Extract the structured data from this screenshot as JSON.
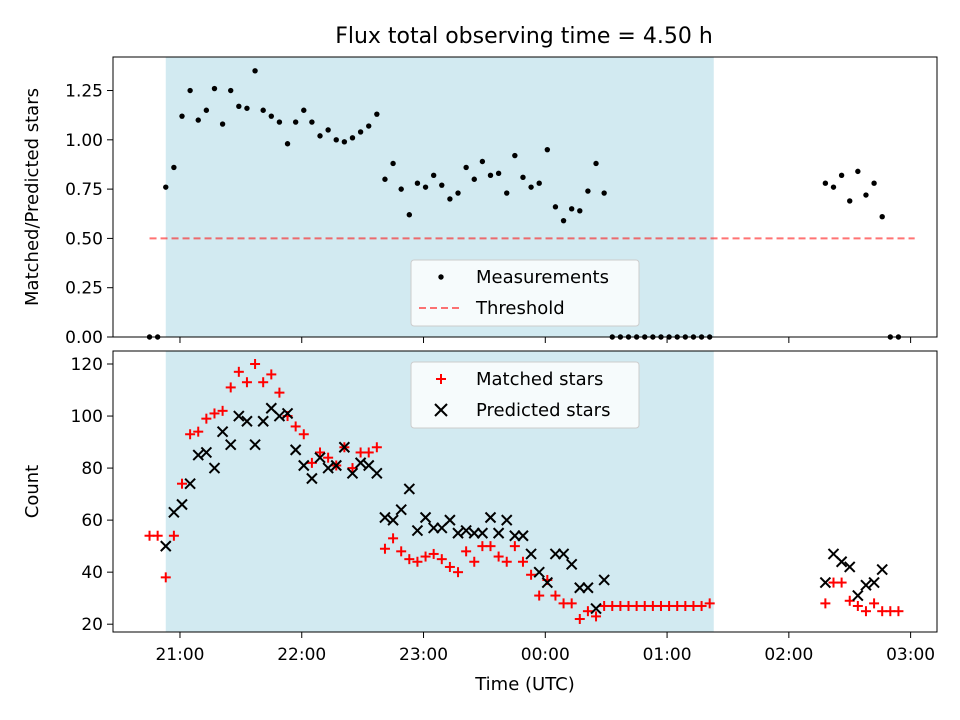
{
  "title": "Flux total observing time = 4.50 h",
  "colors": {
    "shade": "#add8e6",
    "measurement": "#000000",
    "threshold": "#ff0000",
    "matched": "#ff0000",
    "predicted": "#000000"
  },
  "chart_data": [
    {
      "type": "scatter",
      "ylabel": "Matched/Predicted stars",
      "ylim": [
        0,
        1.42
      ],
      "yticks": [
        "0.00",
        "0.25",
        "0.50",
        "0.75",
        "1.00",
        "1.25"
      ],
      "ytick_values": [
        0,
        0.25,
        0.5,
        0.75,
        1.0,
        1.25
      ],
      "xlim": [
        "20:27",
        "03:13"
      ],
      "x_tick_values": [
        "21:00",
        "22:00",
        "23:00",
        "00:00",
        "01:00",
        "02:00",
        "03:00"
      ],
      "shaded_span": [
        "20:53",
        "01:23"
      ],
      "legend": {
        "placement": "lower center",
        "entries": [
          "Measurements",
          "Threshold"
        ]
      },
      "threshold": {
        "name": "Threshold",
        "value": 0.5,
        "x_range": [
          "20:45",
          "03:02"
        ],
        "style": "dashed"
      },
      "series": [
        {
          "name": "Measurements",
          "marker": "dot",
          "points": [
            [
              "20:45",
              0
            ],
            [
              "20:49",
              0
            ],
            [
              "20:53",
              0.76
            ],
            [
              "20:57",
              0.86
            ],
            [
              "21:01",
              1.12
            ],
            [
              "21:05",
              1.25
            ],
            [
              "21:09",
              1.1
            ],
            [
              "21:13",
              1.15
            ],
            [
              "21:17",
              1.26
            ],
            [
              "21:21",
              1.08
            ],
            [
              "21:25",
              1.25
            ],
            [
              "21:29",
              1.17
            ],
            [
              "21:33",
              1.16
            ],
            [
              "21:37",
              1.35
            ],
            [
              "21:41",
              1.15
            ],
            [
              "21:45",
              1.12
            ],
            [
              "21:49",
              1.09
            ],
            [
              "21:53",
              0.98
            ],
            [
              "21:57",
              1.09
            ],
            [
              "22:01",
              1.15
            ],
            [
              "22:05",
              1.09
            ],
            [
              "22:09",
              1.02
            ],
            [
              "22:13",
              1.05
            ],
            [
              "22:17",
              1.0
            ],
            [
              "22:21",
              0.99
            ],
            [
              "22:25",
              1.01
            ],
            [
              "22:29",
              1.04
            ],
            [
              "22:33",
              1.07
            ],
            [
              "22:37",
              1.13
            ],
            [
              "22:41",
              0.8
            ],
            [
              "22:45",
              0.88
            ],
            [
              "22:49",
              0.75
            ],
            [
              "22:53",
              0.62
            ],
            [
              "22:57",
              0.78
            ],
            [
              "23:01",
              0.76
            ],
            [
              "23:05",
              0.82
            ],
            [
              "23:09",
              0.77
            ],
            [
              "23:13",
              0.7
            ],
            [
              "23:17",
              0.73
            ],
            [
              "23:21",
              0.86
            ],
            [
              "23:25",
              0.8
            ],
            [
              "23:29",
              0.89
            ],
            [
              "23:33",
              0.82
            ],
            [
              "23:37",
              0.83
            ],
            [
              "23:41",
              0.73
            ],
            [
              "23:45",
              0.92
            ],
            [
              "23:49",
              0.81
            ],
            [
              "23:53",
              0.76
            ],
            [
              "23:57",
              0.78
            ],
            [
              "00:01",
              0.95
            ],
            [
              "00:05",
              0.66
            ],
            [
              "00:09",
              0.59
            ],
            [
              "00:13",
              0.65
            ],
            [
              "00:17",
              0.64
            ],
            [
              "00:21",
              0.74
            ],
            [
              "00:25",
              0.88
            ],
            [
              "00:29",
              0.73
            ],
            [
              "00:33",
              0
            ],
            [
              "00:37",
              0
            ],
            [
              "00:41",
              0
            ],
            [
              "00:45",
              0
            ],
            [
              "00:49",
              0
            ],
            [
              "00:53",
              0
            ],
            [
              "00:57",
              0
            ],
            [
              "01:01",
              0
            ],
            [
              "01:05",
              0
            ],
            [
              "01:09",
              0
            ],
            [
              "01:13",
              0
            ],
            [
              "01:17",
              0
            ],
            [
              "01:21",
              0
            ],
            [
              "02:18",
              0.78
            ],
            [
              "02:22",
              0.76
            ],
            [
              "02:26",
              0.82
            ],
            [
              "02:30",
              0.69
            ],
            [
              "02:34",
              0.84
            ],
            [
              "02:38",
              0.72
            ],
            [
              "02:42",
              0.78
            ],
            [
              "02:46",
              0.61
            ],
            [
              "02:50",
              0
            ],
            [
              "02:54",
              0
            ]
          ]
        }
      ]
    },
    {
      "type": "scatter",
      "xlabel": "Time (UTC)",
      "ylabel": "Count",
      "ylim": [
        17,
        125
      ],
      "yticks": [
        "20",
        "40",
        "60",
        "80",
        "100",
        "120"
      ],
      "ytick_values": [
        20,
        40,
        60,
        80,
        100,
        120
      ],
      "xlim": [
        "20:27",
        "03:13"
      ],
      "xticks": [
        "21:00",
        "22:00",
        "23:00",
        "00:00",
        "01:00",
        "02:00",
        "03:00"
      ],
      "shaded_span": [
        "20:53",
        "01:23"
      ],
      "legend": {
        "placement": "upper center",
        "entries": [
          "Matched stars",
          "Predicted stars"
        ]
      },
      "series": [
        {
          "name": "Matched stars",
          "marker": "plus",
          "points": [
            [
              "20:45",
              54
            ],
            [
              "20:49",
              54
            ],
            [
              "20:53",
              38
            ],
            [
              "20:57",
              54
            ],
            [
              "21:01",
              74
            ],
            [
              "21:05",
              93
            ],
            [
              "21:09",
              94
            ],
            [
              "21:13",
              99
            ],
            [
              "21:17",
              101
            ],
            [
              "21:21",
              102
            ],
            [
              "21:25",
              111
            ],
            [
              "21:29",
              117
            ],
            [
              "21:33",
              113
            ],
            [
              "21:37",
              120
            ],
            [
              "21:41",
              113
            ],
            [
              "21:45",
              116
            ],
            [
              "21:49",
              109
            ],
            [
              "21:53",
              100
            ],
            [
              "21:57",
              96
            ],
            [
              "22:01",
              93
            ],
            [
              "22:05",
              82
            ],
            [
              "22:09",
              86
            ],
            [
              "22:13",
              84
            ],
            [
              "22:17",
              81
            ],
            [
              "22:21",
              88
            ],
            [
              "22:25",
              80
            ],
            [
              "22:29",
              86
            ],
            [
              "22:33",
              86
            ],
            [
              "22:37",
              88
            ],
            [
              "22:41",
              49
            ],
            [
              "22:45",
              53
            ],
            [
              "22:49",
              48
            ],
            [
              "22:53",
              45
            ],
            [
              "22:57",
              44
            ],
            [
              "23:01",
              46
            ],
            [
              "23:05",
              47
            ],
            [
              "23:09",
              45
            ],
            [
              "23:13",
              42
            ],
            [
              "23:17",
              40
            ],
            [
              "23:21",
              48
            ],
            [
              "23:25",
              44
            ],
            [
              "23:29",
              50
            ],
            [
              "23:33",
              50
            ],
            [
              "23:37",
              46
            ],
            [
              "23:41",
              44
            ],
            [
              "23:45",
              50
            ],
            [
              "23:49",
              44
            ],
            [
              "23:53",
              39
            ],
            [
              "23:57",
              31
            ],
            [
              "00:01",
              37
            ],
            [
              "00:05",
              31
            ],
            [
              "00:09",
              28
            ],
            [
              "00:13",
              28
            ],
            [
              "00:17",
              22
            ],
            [
              "00:21",
              25
            ],
            [
              "00:25",
              23
            ],
            [
              "00:29",
              27
            ],
            [
              "00:33",
              27
            ],
            [
              "00:37",
              27
            ],
            [
              "00:41",
              27
            ],
            [
              "00:45",
              27
            ],
            [
              "00:49",
              27
            ],
            [
              "00:53",
              27
            ],
            [
              "00:57",
              27
            ],
            [
              "01:01",
              27
            ],
            [
              "01:05",
              27
            ],
            [
              "01:09",
              27
            ],
            [
              "01:13",
              27
            ],
            [
              "01:17",
              27
            ],
            [
              "01:21",
              28
            ],
            [
              "02:18",
              28
            ],
            [
              "02:22",
              36
            ],
            [
              "02:26",
              36
            ],
            [
              "02:30",
              29
            ],
            [
              "02:34",
              27
            ],
            [
              "02:38",
              25
            ],
            [
              "02:42",
              28
            ],
            [
              "02:46",
              25
            ],
            [
              "02:50",
              25
            ],
            [
              "02:54",
              25
            ]
          ]
        },
        {
          "name": "Predicted stars",
          "marker": "x",
          "points": [
            [
              "20:53",
              50
            ],
            [
              "20:57",
              63
            ],
            [
              "21:01",
              66
            ],
            [
              "21:05",
              74
            ],
            [
              "21:09",
              85
            ],
            [
              "21:13",
              86
            ],
            [
              "21:17",
              80
            ],
            [
              "21:21",
              94
            ],
            [
              "21:25",
              89
            ],
            [
              "21:29",
              100
            ],
            [
              "21:33",
              98
            ],
            [
              "21:37",
              89
            ],
            [
              "21:41",
              98
            ],
            [
              "21:45",
              103
            ],
            [
              "21:49",
              100
            ],
            [
              "21:53",
              101
            ],
            [
              "21:57",
              87
            ],
            [
              "22:01",
              81
            ],
            [
              "22:05",
              76
            ],
            [
              "22:09",
              84
            ],
            [
              "22:13",
              80
            ],
            [
              "22:17",
              81
            ],
            [
              "22:21",
              88
            ],
            [
              "22:25",
              78
            ],
            [
              "22:29",
              82
            ],
            [
              "22:33",
              81
            ],
            [
              "22:37",
              78
            ],
            [
              "22:41",
              61
            ],
            [
              "22:45",
              60
            ],
            [
              "22:49",
              64
            ],
            [
              "22:53",
              72
            ],
            [
              "22:57",
              56
            ],
            [
              "23:01",
              61
            ],
            [
              "23:05",
              57
            ],
            [
              "23:09",
              57
            ],
            [
              "23:13",
              60
            ],
            [
              "23:17",
              55
            ],
            [
              "23:21",
              56
            ],
            [
              "23:25",
              55
            ],
            [
              "23:29",
              55
            ],
            [
              "23:33",
              61
            ],
            [
              "23:37",
              55
            ],
            [
              "23:41",
              60
            ],
            [
              "23:45",
              54
            ],
            [
              "23:49",
              54
            ],
            [
              "23:53",
              47
            ],
            [
              "23:57",
              40
            ],
            [
              "00:01",
              36
            ],
            [
              "00:05",
              47
            ],
            [
              "00:09",
              47
            ],
            [
              "00:13",
              43
            ],
            [
              "00:17",
              34
            ],
            [
              "00:21",
              34
            ],
            [
              "00:25",
              26
            ],
            [
              "00:29",
              37
            ],
            [
              "02:18",
              36
            ],
            [
              "02:22",
              47
            ],
            [
              "02:26",
              44
            ],
            [
              "02:30",
              42
            ],
            [
              "02:34",
              31
            ],
            [
              "02:38",
              35
            ],
            [
              "02:42",
              36
            ],
            [
              "02:46",
              41
            ]
          ]
        }
      ]
    }
  ]
}
